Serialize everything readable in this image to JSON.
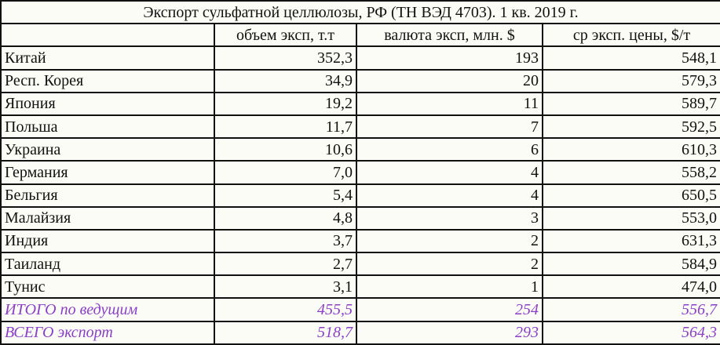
{
  "title": "Экспорт сульфатной целлюлозы, РФ (ТН ВЭД 4703). 1 кв. 2019 г.",
  "columns": [
    "",
    "объем эксп, т.т",
    "валюта эксп, млн. $",
    "ср эксп. цены, $/т"
  ],
  "rows": [
    [
      "Китай",
      "352,3",
      "193",
      "548,1"
    ],
    [
      "Респ. Корея",
      "34,9",
      "20",
      "579,3"
    ],
    [
      "Япония",
      "19,2",
      "11",
      "589,7"
    ],
    [
      "Польша",
      "11,7",
      "7",
      "592,5"
    ],
    [
      "Украина",
      "10,6",
      "6",
      "610,3"
    ],
    [
      "Германия",
      "7,0",
      "4",
      "558,2"
    ],
    [
      "Бельгия",
      "5,4",
      "4",
      "650,5"
    ],
    [
      "Малайзия",
      "4,8",
      "3",
      "553,0"
    ],
    [
      "Индия",
      "3,7",
      "2",
      "631,3"
    ],
    [
      "Таиланд",
      "2,7",
      "2",
      "584,9"
    ],
    [
      "Тунис",
      "3,1",
      "1",
      "474,0"
    ]
  ],
  "totals": [
    [
      "ИТОГО по ведущим",
      "455,5",
      "254",
      "556,7"
    ],
    [
      "ВСЕГО экспорт",
      "518,7",
      "293",
      "564,3"
    ]
  ],
  "colors": {
    "total_text": "#8b3fc9",
    "background": "#fcfcf6",
    "border": "#111111"
  }
}
